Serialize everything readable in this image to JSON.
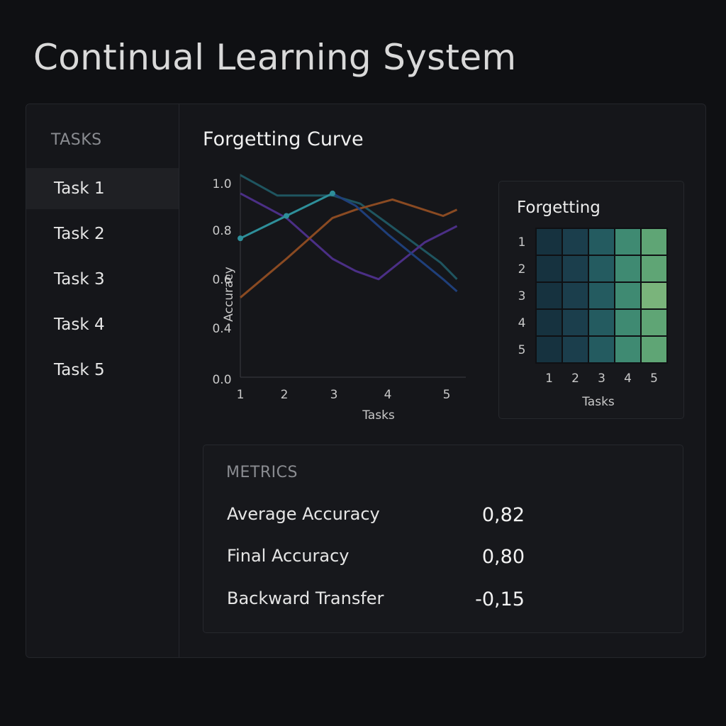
{
  "app": {
    "title": "Continual Learning System"
  },
  "sidebar": {
    "heading": "TASKS",
    "items": [
      {
        "label": "Task 1",
        "active": true
      },
      {
        "label": "Task 2",
        "active": false
      },
      {
        "label": "Task 3",
        "active": false
      },
      {
        "label": "Task 4",
        "active": false
      },
      {
        "label": "Task 5",
        "active": false
      }
    ]
  },
  "chart_data": [
    {
      "type": "line",
      "title": "Forgetting Curve",
      "xlabel": "Tasks",
      "ylabel": "Accuracy",
      "x": [
        1,
        2,
        3,
        4,
        5
      ],
      "xlim": [
        1,
        5.35
      ],
      "ylim": [
        0.0,
        1.0
      ],
      "y_ticks": [
        "1.0",
        "0.8",
        "0.6",
        "0.4",
        "0.0"
      ],
      "grid": false,
      "series": [
        {
          "color": "#1f5560",
          "points": [
            [
              1,
              0.99
            ],
            [
              1.8,
              0.89
            ],
            [
              3,
              0.89
            ],
            [
              3.6,
              0.85
            ],
            [
              4.15,
              0.76
            ],
            [
              5.35,
              0.56
            ],
            [
              5.7,
              0.48
            ]
          ]
        },
        {
          "color": "#4b2f86",
          "points": [
            [
              1,
              0.9
            ],
            [
              2,
              0.78
            ],
            [
              3,
              0.58
            ],
            [
              3.5,
              0.52
            ],
            [
              4,
              0.48
            ],
            [
              5,
              0.66
            ],
            [
              5.7,
              0.74
            ]
          ]
        },
        {
          "color": "#8a4a22",
          "points": [
            [
              1,
              0.39
            ],
            [
              2,
              0.58
            ],
            [
              3,
              0.78
            ],
            [
              3.5,
              0.82
            ],
            [
              4.3,
              0.87
            ],
            [
              5.4,
              0.79
            ],
            [
              5.7,
              0.82
            ]
          ]
        },
        {
          "color": "#1f3f7a",
          "points": [
            [
              3,
              0.9
            ],
            [
              3.5,
              0.84
            ],
            [
              4.2,
              0.7
            ],
            [
              5.4,
              0.48
            ],
            [
              5.7,
              0.42
            ]
          ]
        },
        {
          "color": "#2e8f9a",
          "points": [
            [
              1,
              0.68
            ],
            [
              2,
              0.79
            ],
            [
              3,
              0.9
            ]
          ],
          "markers": true
        }
      ]
    },
    {
      "type": "heatmap",
      "title": "Forgetting",
      "xlabel": "Tasks",
      "x_ticks": [
        "1",
        "2",
        "3",
        "4",
        "5"
      ],
      "y_ticks": [
        "1",
        "2",
        "3",
        "4",
        "5"
      ],
      "cell_colors": [
        [
          "#16323f",
          "#1b3e4c",
          "#245b60",
          "#3f8a72",
          "#5fa575"
        ],
        [
          "#16323f",
          "#1b3e4c",
          "#245b60",
          "#3f8a72",
          "#5fa575"
        ],
        [
          "#16323f",
          "#1b3e4c",
          "#245b60",
          "#3f8a72",
          "#7ab47b"
        ],
        [
          "#16323f",
          "#1b3e4c",
          "#245b60",
          "#3f8a72",
          "#5fa575"
        ],
        [
          "#16323f",
          "#1b3e4c",
          "#245b60",
          "#3f8a72",
          "#5fa575"
        ]
      ]
    }
  ],
  "metrics": {
    "heading": "METRICS",
    "rows": [
      {
        "label": "Average Accuracy",
        "value": "0,82"
      },
      {
        "label": "Final Accuracy",
        "value": "0,80"
      },
      {
        "label": "Backward Transfer",
        "value": "-0,15"
      }
    ]
  }
}
